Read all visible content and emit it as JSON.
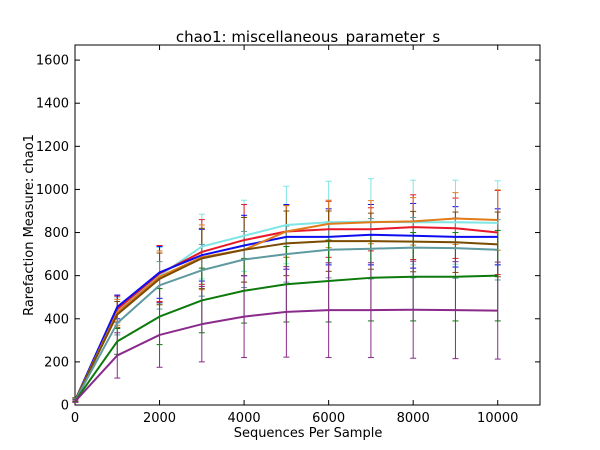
{
  "chart_data": {
    "type": "line",
    "title": "chao1: miscellaneous_parameter_s",
    "xlabel": "Sequences Per Sample",
    "ylabel": "Rarefaction Measure: chao1",
    "xlim": [
      0,
      11000
    ],
    "ylim": [
      0,
      1670
    ],
    "xticks": [
      0,
      2000,
      4000,
      6000,
      8000,
      10000
    ],
    "yticks": [
      0,
      200,
      400,
      600,
      800,
      1000,
      1200,
      1400,
      1600
    ],
    "grid": false,
    "legend": "none",
    "x": [
      10,
      1000,
      2000,
      3000,
      4000,
      5000,
      6000,
      7000,
      8000,
      9000,
      10000
    ],
    "series": [
      {
        "color": "#7fe5e5",
        "values": [
          25,
          440,
          600,
          735,
          785,
          835,
          848,
          850,
          848,
          848,
          845
        ],
        "err": [
          8,
          60,
          130,
          150,
          165,
          180,
          190,
          200,
          195,
          195,
          195
        ]
      },
      {
        "color": "#e8182a",
        "values": [
          25,
          445,
          610,
          710,
          765,
          805,
          815,
          815,
          825,
          820,
          800
        ],
        "err": [
          8,
          60,
          130,
          150,
          165,
          120,
          130,
          100,
          150,
          140,
          195
        ]
      },
      {
        "color": "#0d0df0",
        "values": [
          25,
          455,
          615,
          695,
          740,
          780,
          780,
          790,
          785,
          780,
          780
        ],
        "err": [
          8,
          55,
          120,
          120,
          140,
          150,
          130,
          140,
          150,
          140,
          130
        ]
      },
      {
        "color": "#e07a1a",
        "values": [
          25,
          430,
          595,
          685,
          720,
          805,
          840,
          848,
          852,
          865,
          858
        ],
        "err": [
          8,
          60,
          120,
          150,
          150,
          120,
          110,
          100,
          110,
          120,
          140
        ]
      },
      {
        "color": "#7a4a00",
        "values": [
          25,
          420,
          585,
          680,
          720,
          750,
          760,
          760,
          758,
          755,
          745
        ],
        "err": [
          8,
          60,
          120,
          140,
          150,
          150,
          140,
          130,
          140,
          140,
          150
        ]
      },
      {
        "color": "#5f9aa0",
        "values": [
          22,
          380,
          555,
          625,
          675,
          700,
          720,
          725,
          730,
          728,
          720
        ],
        "err": [
          8,
          55,
          110,
          120,
          130,
          130,
          130,
          140,
          140,
          140,
          140
        ]
      },
      {
        "color": "#0c7a0c",
        "values": [
          20,
          295,
          410,
          485,
          530,
          560,
          575,
          590,
          595,
          595,
          600
        ],
        "err": [
          6,
          60,
          130,
          150,
          150,
          175,
          190,
          200,
          205,
          205,
          210
        ]
      },
      {
        "color": "#8a2a8a",
        "values": [
          18,
          230,
          325,
          375,
          410,
          432,
          440,
          440,
          442,
          440,
          438
        ],
        "err": [
          6,
          105,
          150,
          175,
          190,
          210,
          220,
          220,
          225,
          225,
          225
        ]
      }
    ]
  }
}
